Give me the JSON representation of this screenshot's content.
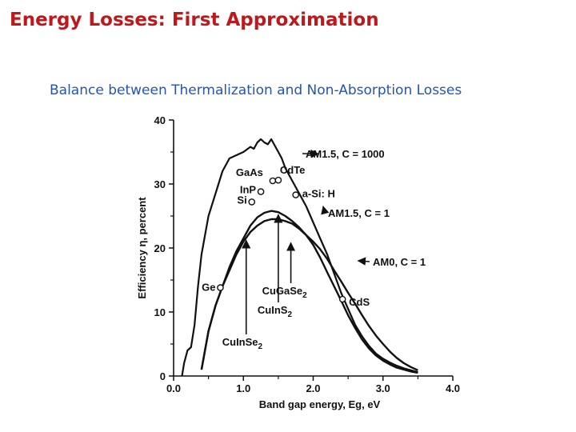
{
  "slide": {
    "title": "Energy Losses: First Approximation",
    "subtitle": "Balance between Thermalization and Non-Absorption Losses"
  },
  "colors": {
    "title": "#c0171b",
    "subtitle": "#2255b5",
    "ink": "#111111"
  },
  "chart_data": {
    "type": "line",
    "title": "",
    "xlabel": "Band gap energy, Eg, eV",
    "ylabel": "Efficiency η, percent",
    "xlim": [
      0,
      4
    ],
    "ylim": [
      0,
      40
    ],
    "xticks": [
      "0.0",
      "1.0",
      "2.0",
      "3.0",
      "4.0"
    ],
    "yticks": [
      "0",
      "10",
      "20",
      "30",
      "40"
    ],
    "grid": false,
    "series": [
      {
        "name": "AM1.5, C = 1000",
        "x": [
          0.12,
          0.15,
          0.2,
          0.25,
          0.3,
          0.35,
          0.4,
          0.5,
          0.6,
          0.7,
          0.8,
          0.9,
          1.0,
          1.1,
          1.15,
          1.2,
          1.25,
          1.3,
          1.35,
          1.4,
          1.45,
          1.5,
          1.55,
          1.6,
          1.7,
          1.8,
          1.9,
          2.0,
          2.1,
          2.2,
          2.3,
          2.4,
          2.5,
          2.6,
          2.7,
          2.8,
          2.9,
          3.0,
          3.1,
          3.2,
          3.3,
          3.4,
          3.5
        ],
        "y": [
          0,
          2,
          4,
          4.5,
          8,
          14,
          19,
          25,
          28.5,
          32,
          34,
          34.5,
          35,
          35.8,
          35.5,
          36.5,
          37,
          36.5,
          36.2,
          37,
          36,
          35,
          34,
          32.5,
          30.5,
          28.5,
          26.5,
          24,
          21.5,
          19,
          16,
          13,
          10.5,
          8,
          6.2,
          4.7,
          3.5,
          2.7,
          2.1,
          1.6,
          1.2,
          0.9,
          0.6
        ]
      },
      {
        "name": "AM1.5, C = 1",
        "x": [
          0.4,
          0.5,
          0.6,
          0.7,
          0.8,
          0.9,
          1.0,
          1.1,
          1.2,
          1.3,
          1.4,
          1.5,
          1.6,
          1.7,
          1.8,
          1.9,
          2.0,
          2.1,
          2.2,
          2.3,
          2.4,
          2.5,
          2.6,
          2.7,
          2.8,
          2.9,
          3.0,
          3.1,
          3.2,
          3.3,
          3.4,
          3.5
        ],
        "y": [
          1,
          7,
          11,
          14,
          17,
          19.5,
          21.5,
          23.5,
          24.8,
          25.5,
          25.8,
          25.6,
          25,
          24.2,
          23.2,
          22,
          20.5,
          18.5,
          16.2,
          14,
          11.8,
          9.5,
          7.5,
          5.7,
          4.3,
          3.2,
          2.4,
          1.8,
          1.3,
          1.0,
          0.7,
          0.5
        ]
      },
      {
        "name": "AM0, C = 1",
        "x": [
          0.4,
          0.5,
          0.6,
          0.7,
          0.8,
          0.9,
          1.0,
          1.1,
          1.2,
          1.3,
          1.4,
          1.5,
          1.6,
          1.7,
          1.8,
          1.9,
          2.0,
          2.1,
          2.2,
          2.3,
          2.4,
          2.5,
          2.6,
          2.7,
          2.8,
          2.9,
          3.0,
          3.1,
          3.2,
          3.3,
          3.4,
          3.5
        ],
        "y": [
          1,
          7,
          11,
          14,
          16.5,
          19,
          21,
          22.5,
          23.5,
          24.2,
          24.5,
          24.5,
          24.2,
          23.8,
          23,
          22,
          21,
          19.8,
          18.3,
          16.5,
          14.8,
          13,
          11.3,
          9.5,
          7.8,
          6.3,
          5,
          3.8,
          2.8,
          2.0,
          1.4,
          0.9
        ]
      }
    ],
    "markers": [
      {
        "label": "Ge",
        "x": 0.67,
        "y": 13.8
      },
      {
        "label": "Si",
        "x": 1.12,
        "y": 27.2
      },
      {
        "label": "InP",
        "x": 1.25,
        "y": 28.8
      },
      {
        "label": "GaAs",
        "x": 1.42,
        "y": 30.5
      },
      {
        "label": "CdTe",
        "x": 1.5,
        "y": 30.6
      },
      {
        "label": "a-Si: H",
        "x": 1.75,
        "y": 28.3
      },
      {
        "label": "CdS",
        "x": 2.42,
        "y": 12.0
      }
    ],
    "arrows": [
      {
        "label": "CuInSe2",
        "x": 1.04,
        "y_from": 6.5,
        "y_to": 21.2
      },
      {
        "label": "CuInS2",
        "x": 1.5,
        "y_from": 11.5,
        "y_to": 25.2
      },
      {
        "label": "CuGaSe2",
        "x": 1.68,
        "y_from": 14.5,
        "y_to": 20.8
      }
    ],
    "annotations": [
      {
        "label": "AM1.5, C = 1000",
        "points_to": "AM1.5, C = 1000"
      },
      {
        "label": "AM1.5, C = 1",
        "points_to": "AM1.5, C = 1"
      },
      {
        "label": "AM0, C = 1",
        "points_to": "AM0, C = 1"
      }
    ]
  }
}
